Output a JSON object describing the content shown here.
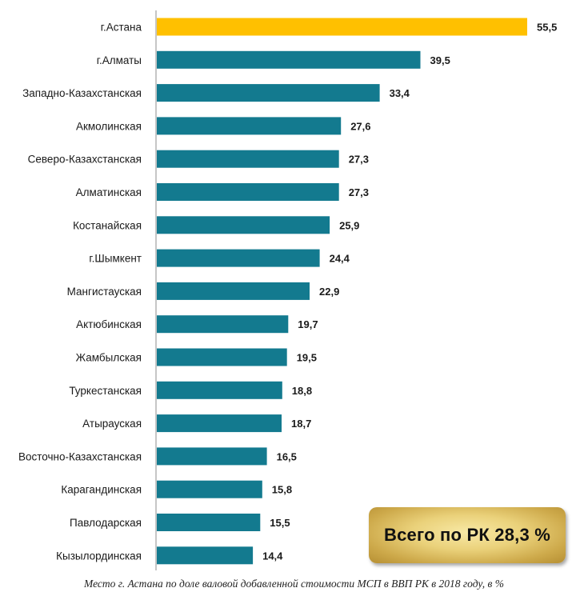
{
  "chart_data": {
    "type": "bar",
    "orientation": "horizontal",
    "categories": [
      "г.Астана",
      "г.Алматы",
      "Западно-Казахстанская",
      "Акмолинская",
      "Северо-Казахстанская",
      "Алматинская",
      "Костанайская",
      "г.Шымкент",
      "Мангистауская",
      "Актюбинская",
      "Жамбылская",
      "Туркестанская",
      "Атырауская",
      "Восточно-Казахстанская",
      "Карагандинская",
      "Павлодарская",
      "Кызылординская"
    ],
    "values": [
      55.5,
      39.5,
      33.4,
      27.6,
      27.3,
      27.3,
      25.9,
      24.4,
      22.9,
      19.7,
      19.5,
      18.8,
      18.7,
      16.5,
      15.8,
      15.5,
      14.4
    ],
    "value_labels": [
      "55,5",
      "39,5",
      "33,4",
      "27,6",
      "27,3",
      "27,3",
      "25,9",
      "24,4",
      "22,9",
      "19,7",
      "19,5",
      "18,8",
      "18,7",
      "16,5",
      "15,8",
      "15,5",
      "14,4"
    ],
    "highlight_index": 0,
    "xlim": [
      0,
      60
    ],
    "grid": false,
    "legend": "none",
    "colors": {
      "bar": "#137a8f",
      "highlight": "#ffc000",
      "axis": "#8c8c8c"
    },
    "caption": "Место г. Астана по доле валовой добавленной стоимости МСП  в ВВП РК в 2018  году, в %"
  },
  "badge": {
    "text": "Всего по РК 28,3 %"
  }
}
